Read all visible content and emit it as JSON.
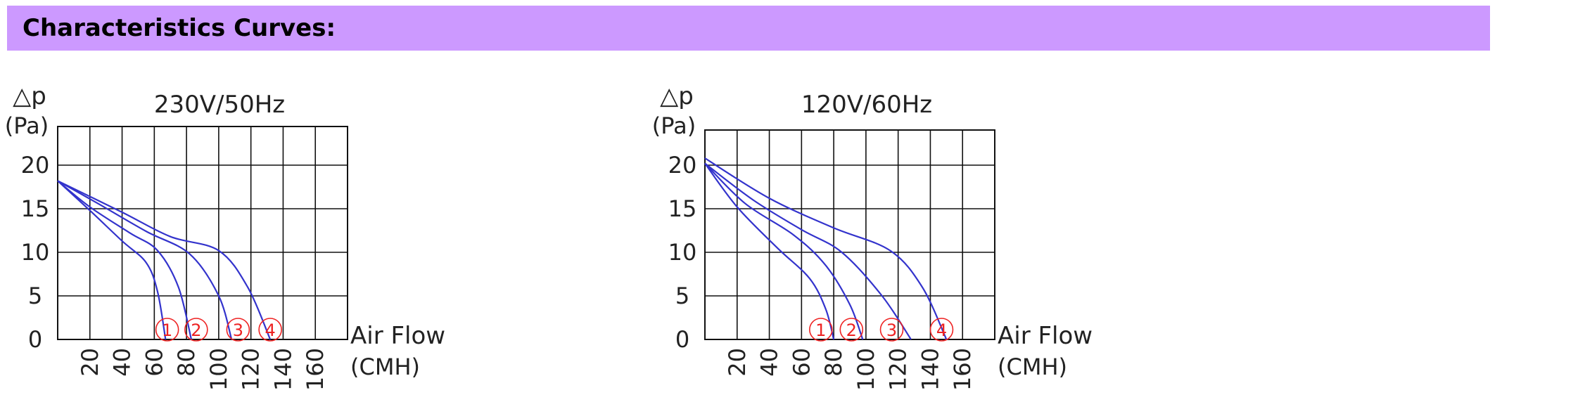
{
  "header": {
    "title": "Characteristics Curves:",
    "background": "#cc99ff"
  },
  "chart_data": [
    {
      "type": "line",
      "title": "230V/50Hz",
      "ylabel_symbol": "△p",
      "ylabel_unit": "(Pa)",
      "xlabel": "Air Flow",
      "xlabel_unit": "(CMH)",
      "xlim": [
        0,
        180
      ],
      "ylim": [
        0,
        23
      ],
      "x_ticks": [
        "20",
        "40",
        "60",
        "80",
        "100",
        "120",
        "140",
        "160"
      ],
      "y_ticks": [
        "0",
        "5",
        "10",
        "15",
        "20"
      ],
      "grid": true,
      "line_color": "#3333cc",
      "marker_color": "#ee2222",
      "series": [
        {
          "name": "1",
          "points": [
            [
              0,
              18.2
            ],
            [
              20,
              14.8
            ],
            [
              40,
              11.3
            ],
            [
              55,
              8.8
            ],
            [
              62,
              5.5
            ],
            [
              67,
              0
            ]
          ]
        },
        {
          "name": "2",
          "points": [
            [
              0,
              18.2
            ],
            [
              20,
              15.2
            ],
            [
              45,
              12.2
            ],
            [
              62,
              10.2
            ],
            [
              75,
              6
            ],
            [
              83,
              0
            ]
          ]
        },
        {
          "name": "3",
          "points": [
            [
              0,
              18.2
            ],
            [
              25,
              15.6
            ],
            [
              55,
              12.4
            ],
            [
              82,
              9.8
            ],
            [
              100,
              5
            ],
            [
              108,
              0
            ]
          ]
        },
        {
          "name": "4",
          "points": [
            [
              0,
              18.2
            ],
            [
              40,
              14.6
            ],
            [
              70,
              11.8
            ],
            [
              100,
              10.2
            ],
            [
              118,
              6
            ],
            [
              132,
              0
            ]
          ]
        }
      ],
      "markers": [
        {
          "label": "1",
          "x": 68
        },
        {
          "label": "2",
          "x": 86
        },
        {
          "label": "3",
          "x": 112
        },
        {
          "label": "4",
          "x": 132
        }
      ]
    },
    {
      "type": "line",
      "title": "120V/60Hz",
      "ylabel_symbol": "△p",
      "ylabel_unit": "(Pa)",
      "xlabel": "Air Flow",
      "xlabel_unit": "(CMH)",
      "xlim": [
        0,
        180
      ],
      "ylim": [
        0,
        23
      ],
      "x_ticks": [
        "20",
        "40",
        "60",
        "80",
        "100",
        "120",
        "140",
        "160"
      ],
      "y_ticks": [
        "0",
        "5",
        "10",
        "15",
        "20"
      ],
      "grid": true,
      "line_color": "#3333cc",
      "marker_color": "#ee2222",
      "series": [
        {
          "name": "1",
          "points": [
            [
              0,
              20.2
            ],
            [
              20,
              15.2
            ],
            [
              45,
              10.5
            ],
            [
              65,
              7
            ],
            [
              75,
              3.5
            ],
            [
              80,
              0
            ]
          ]
        },
        {
          "name": "2",
          "points": [
            [
              0,
              20.2
            ],
            [
              25,
              15.6
            ],
            [
              55,
              12
            ],
            [
              75,
              8.5
            ],
            [
              90,
              4
            ],
            [
              98,
              0
            ]
          ]
        },
        {
          "name": "3",
          "points": [
            [
              0,
              20.2
            ],
            [
              30,
              16
            ],
            [
              60,
              12.6
            ],
            [
              85,
              10
            ],
            [
              110,
              5
            ],
            [
              128,
              0
            ]
          ]
        },
        {
          "name": "4",
          "points": [
            [
              0,
              20.8
            ],
            [
              40,
              16.2
            ],
            [
              80,
              12.8
            ],
            [
              115,
              10.2
            ],
            [
              135,
              6
            ],
            [
              150,
              0
            ]
          ]
        }
      ],
      "markers": [
        {
          "label": "1",
          "x": 72
        },
        {
          "label": "2",
          "x": 91
        },
        {
          "label": "3",
          "x": 116
        },
        {
          "label": "4",
          "x": 147
        }
      ]
    }
  ]
}
